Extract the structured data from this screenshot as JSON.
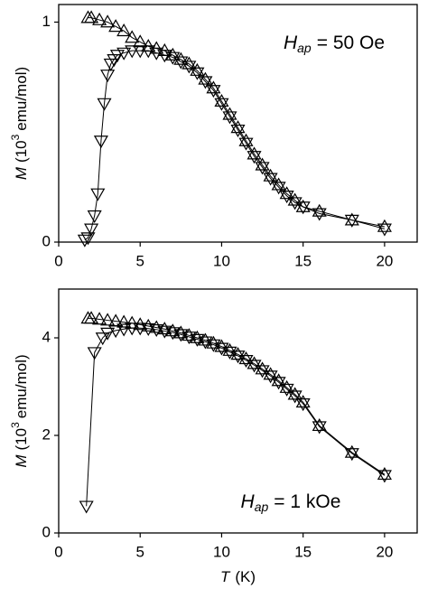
{
  "chart_data": [
    {
      "type": "line",
      "xlim": [
        0,
        22
      ],
      "ylim": [
        0,
        1.08
      ],
      "xticks": [
        0,
        5,
        10,
        15,
        20
      ],
      "yticks": [
        0,
        1
      ],
      "ylabel": [
        "M",
        "(10",
        "3",
        "emu/mol)"
      ],
      "annotation": [
        "H",
        "ap",
        "= 50 Oe"
      ],
      "series": [
        {
          "marker": "triangle-up",
          "color": "#000000",
          "x": [
            1.8,
            2,
            2.5,
            3,
            3.5,
            4,
            4.5,
            5,
            5.5,
            6,
            6.5,
            7,
            7.5,
            8,
            8.5,
            9,
            9.5,
            10,
            10.5,
            11,
            11.5,
            12,
            12.5,
            13,
            13.5,
            14,
            14.5,
            15,
            16,
            18,
            20
          ],
          "values": [
            1.02,
            1.02,
            1.01,
            1.0,
            0.98,
            0.96,
            0.93,
            0.91,
            0.89,
            0.88,
            0.87,
            0.85,
            0.83,
            0.81,
            0.78,
            0.74,
            0.7,
            0.64,
            0.58,
            0.52,
            0.46,
            0.4,
            0.35,
            0.3,
            0.26,
            0.22,
            0.19,
            0.16,
            0.14,
            0.1,
            0.07
          ]
        },
        {
          "marker": "triangle-down",
          "color": "#000000",
          "x": [
            1.6,
            1.8,
            2,
            2.2,
            2.4,
            2.6,
            2.8,
            3,
            3.2,
            3.4,
            3.6,
            4,
            4.5,
            5,
            5.5,
            6,
            6.5,
            7,
            7.5,
            8,
            8.5,
            9,
            9.5,
            10,
            10.5,
            11,
            11.5,
            12,
            12.5,
            13,
            13.5,
            14,
            14.5,
            15,
            16,
            18,
            20
          ],
          "values": [
            0.01,
            0.02,
            0.06,
            0.12,
            0.22,
            0.46,
            0.63,
            0.76,
            0.81,
            0.83,
            0.85,
            0.86,
            0.87,
            0.87,
            0.87,
            0.86,
            0.85,
            0.84,
            0.82,
            0.8,
            0.77,
            0.73,
            0.69,
            0.63,
            0.57,
            0.51,
            0.45,
            0.39,
            0.34,
            0.29,
            0.25,
            0.21,
            0.18,
            0.16,
            0.13,
            0.1,
            0.06
          ]
        }
      ]
    },
    {
      "type": "line",
      "xlim": [
        0,
        22
      ],
      "ylim": [
        0,
        5
      ],
      "xticks": [
        0,
        5,
        10,
        15,
        20
      ],
      "yticks": [
        0,
        2,
        4
      ],
      "xlabel": [
        "T",
        "(K)"
      ],
      "ylabel": [
        "M",
        "(10",
        "3",
        "emu/mol)"
      ],
      "annotation": [
        "H",
        "ap",
        "= 1 kOe"
      ],
      "series": [
        {
          "marker": "triangle-up",
          "color": "#000000",
          "x": [
            1.8,
            2,
            2.5,
            3,
            3.5,
            4,
            4.5,
            5,
            5.5,
            6,
            6.5,
            7,
            7.5,
            8,
            8.5,
            9,
            9.5,
            10,
            10.5,
            11,
            11.5,
            12,
            12.5,
            13,
            13.5,
            14,
            14.5,
            15,
            16,
            18,
            20
          ],
          "values": [
            4.4,
            4.4,
            4.38,
            4.36,
            4.34,
            4.32,
            4.3,
            4.27,
            4.24,
            4.21,
            4.18,
            4.14,
            4.1,
            4.05,
            4.0,
            3.95,
            3.89,
            3.82,
            3.74,
            3.66,
            3.57,
            3.47,
            3.36,
            3.25,
            3.12,
            2.98,
            2.84,
            2.68,
            2.2,
            1.65,
            1.2
          ]
        },
        {
          "marker": "triangle-down",
          "color": "#000000",
          "x": [
            1.7,
            2.2,
            2.7,
            3,
            3.5,
            4,
            4.5,
            5,
            5.5,
            6,
            6.5,
            7,
            7.5,
            8,
            8.5,
            9,
            9.5,
            10,
            10.5,
            11,
            11.5,
            12,
            12.5,
            13,
            13.5,
            14,
            14.5,
            15,
            16,
            18,
            20
          ],
          "values": [
            0.55,
            3.7,
            4.0,
            4.1,
            4.15,
            4.18,
            4.2,
            4.2,
            4.19,
            4.17,
            4.14,
            4.11,
            4.07,
            4.02,
            3.97,
            3.92,
            3.86,
            3.79,
            3.71,
            3.63,
            3.54,
            3.44,
            3.33,
            3.22,
            3.09,
            2.95,
            2.81,
            2.65,
            2.18,
            1.63,
            1.18
          ]
        }
      ]
    }
  ]
}
